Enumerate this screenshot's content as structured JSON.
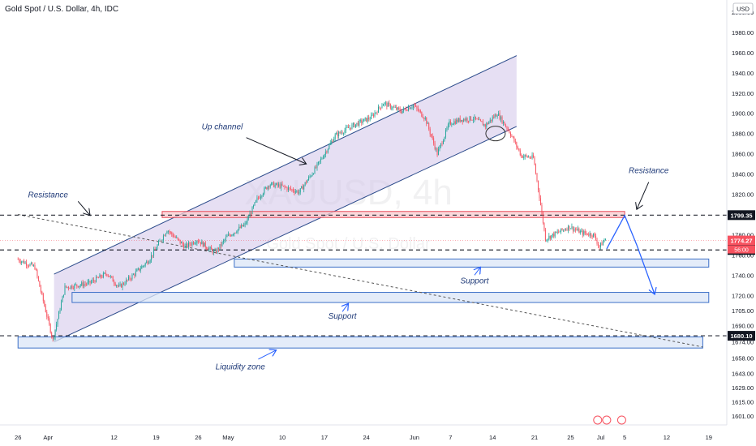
{
  "chart_data": {
    "type": "candlestick",
    "title": "Gold Spot / U.S. Dollar, 4h, IDC",
    "watermark_symbol": "XAUUSD, 4h",
    "watermark_name": "Gold Spot / U.S. Dollar",
    "currency_label": "USD",
    "price_range": [
      1592,
      2012
    ],
    "y_ticks": [
      2000,
      1980,
      1960,
      1940,
      1920,
      1900,
      1880,
      1860,
      1840,
      1820,
      1800,
      1780,
      1760,
      1740,
      1720,
      1705,
      1690,
      1674,
      1658,
      1643,
      1629,
      1615,
      1601
    ],
    "y_tick_labels": [
      "2000.00",
      "1980.00",
      "1960.00",
      "1940.00",
      "1920.00",
      "1900.00",
      "1880.00",
      "1860.00",
      "1840.00",
      "1820.00",
      "1800.00",
      "1780.00",
      "1760.00",
      "1740.00",
      "1720.00",
      "1705.00",
      "1690.00",
      "1674.00",
      "1658.00",
      "1643.00",
      "1629.00",
      "1615.00",
      "1601.00"
    ],
    "x_ticks": [
      {
        "label": "26",
        "t": 0
      },
      {
        "label": "Apr",
        "t": 5
      },
      {
        "label": "12",
        "t": 16
      },
      {
        "label": "19",
        "t": 23
      },
      {
        "label": "26",
        "t": 30
      },
      {
        "label": "May",
        "t": 35
      },
      {
        "label": "10",
        "t": 44
      },
      {
        "label": "17",
        "t": 51
      },
      {
        "label": "24",
        "t": 58
      },
      {
        "label": "Jun",
        "t": 66
      },
      {
        "label": "7",
        "t": 72
      },
      {
        "label": "14",
        "t": 79
      },
      {
        "label": "21",
        "t": 86
      },
      {
        "label": "25",
        "t": 92
      },
      {
        "label": "Jul",
        "t": 97
      },
      {
        "label": "5",
        "t": 101
      },
      {
        "label": "12",
        "t": 108
      },
      {
        "label": "19",
        "t": 115
      }
    ],
    "price_path": [
      [
        0,
        1756
      ],
      [
        3,
        1748
      ],
      [
        6,
        1676
      ],
      [
        8,
        1728
      ],
      [
        12,
        1732
      ],
      [
        15,
        1742
      ],
      [
        17,
        1728
      ],
      [
        19,
        1738
      ],
      [
        22,
        1755
      ],
      [
        25,
        1785
      ],
      [
        28,
        1768
      ],
      [
        30,
        1775
      ],
      [
        33,
        1762
      ],
      [
        35,
        1778
      ],
      [
        38,
        1790
      ],
      [
        40,
        1815
      ],
      [
        42,
        1830
      ],
      [
        44,
        1828
      ],
      [
        47,
        1822
      ],
      [
        50,
        1848
      ],
      [
        53,
        1878
      ],
      [
        56,
        1888
      ],
      [
        59,
        1896
      ],
      [
        61,
        1910
      ],
      [
        64,
        1902
      ],
      [
        66,
        1908
      ],
      [
        68,
        1895
      ],
      [
        70,
        1860
      ],
      [
        72,
        1890
      ],
      [
        74,
        1894
      ],
      [
        76,
        1895
      ],
      [
        78,
        1888
      ],
      [
        80,
        1900
      ],
      [
        82,
        1882
      ],
      [
        84,
        1858
      ],
      [
        86,
        1856
      ],
      [
        87,
        1818
      ],
      [
        88,
        1776
      ],
      [
        90,
        1782
      ],
      [
        92,
        1788
      ],
      [
        94,
        1782
      ],
      [
        96,
        1780
      ],
      [
        97,
        1768
      ],
      [
        98,
        1776
      ]
    ],
    "price_levels": [
      {
        "value": 1799.35,
        "label": "1799.35",
        "style": "dashed",
        "color": "#131722"
      },
      {
        "value": 1774.27,
        "label": "1774.27",
        "style": "solid",
        "color": "#f7525f"
      },
      {
        "value": 1764.92,
        "label": "1764.92",
        "style": "dashed",
        "color": "#131722"
      },
      {
        "value": 1680.1,
        "label": "1680.10",
        "style": "dashed",
        "color": "#131722"
      }
    ],
    "countdown_label": "56:00",
    "zones": [
      {
        "name": "resistance",
        "top": 1803,
        "bottom": 1797,
        "t0": 24,
        "t1": 101,
        "color": "#f7525f"
      },
      {
        "name": "support-1",
        "top": 1756,
        "bottom": 1748,
        "t0": 36,
        "t1": 115,
        "color": "#2962ff"
      },
      {
        "name": "support-2",
        "top": 1723,
        "bottom": 1713,
        "t0": 9,
        "t1": 115,
        "color": "#2962ff"
      },
      {
        "name": "liquidity",
        "top": 1679,
        "bottom": 1668,
        "t0": 0,
        "t1": 114,
        "color": "#2962ff"
      }
    ],
    "channel": {
      "lower": [
        [
          6,
          1674
        ],
        [
          83,
          1887
        ]
      ],
      "upper": [
        [
          6,
          1741
        ],
        [
          83,
          1957
        ]
      ]
    },
    "trendline": {
      "from": [
        0,
        1800
      ],
      "to": [
        114,
        1669
      ]
    },
    "forecast_path": [
      [
        98,
        1766
      ],
      [
        101,
        1799
      ],
      [
        103,
        1770
      ],
      [
        106,
        1721
      ]
    ],
    "annotations": [
      {
        "text": "Up channel",
        "t": 34,
        "v": 1884
      },
      {
        "text": "Resistance",
        "t": 5,
        "v": 1817
      },
      {
        "text": "Resistance",
        "t": 105,
        "v": 1841
      },
      {
        "text": "Support",
        "t": 76,
        "v": 1732
      },
      {
        "text": "Support",
        "t": 54,
        "v": 1697
      },
      {
        "text": "Liquidity zone",
        "t": 37,
        "v": 1647
      }
    ],
    "grid": false,
    "colors": {
      "up": "#26a69a",
      "down": "#f7525f",
      "channel_fill": "#d1c4e9",
      "zone_blue_fill": "#dbe6f7",
      "zone_blue_stroke": "#2962ff",
      "arrow": "#2962ff"
    }
  }
}
